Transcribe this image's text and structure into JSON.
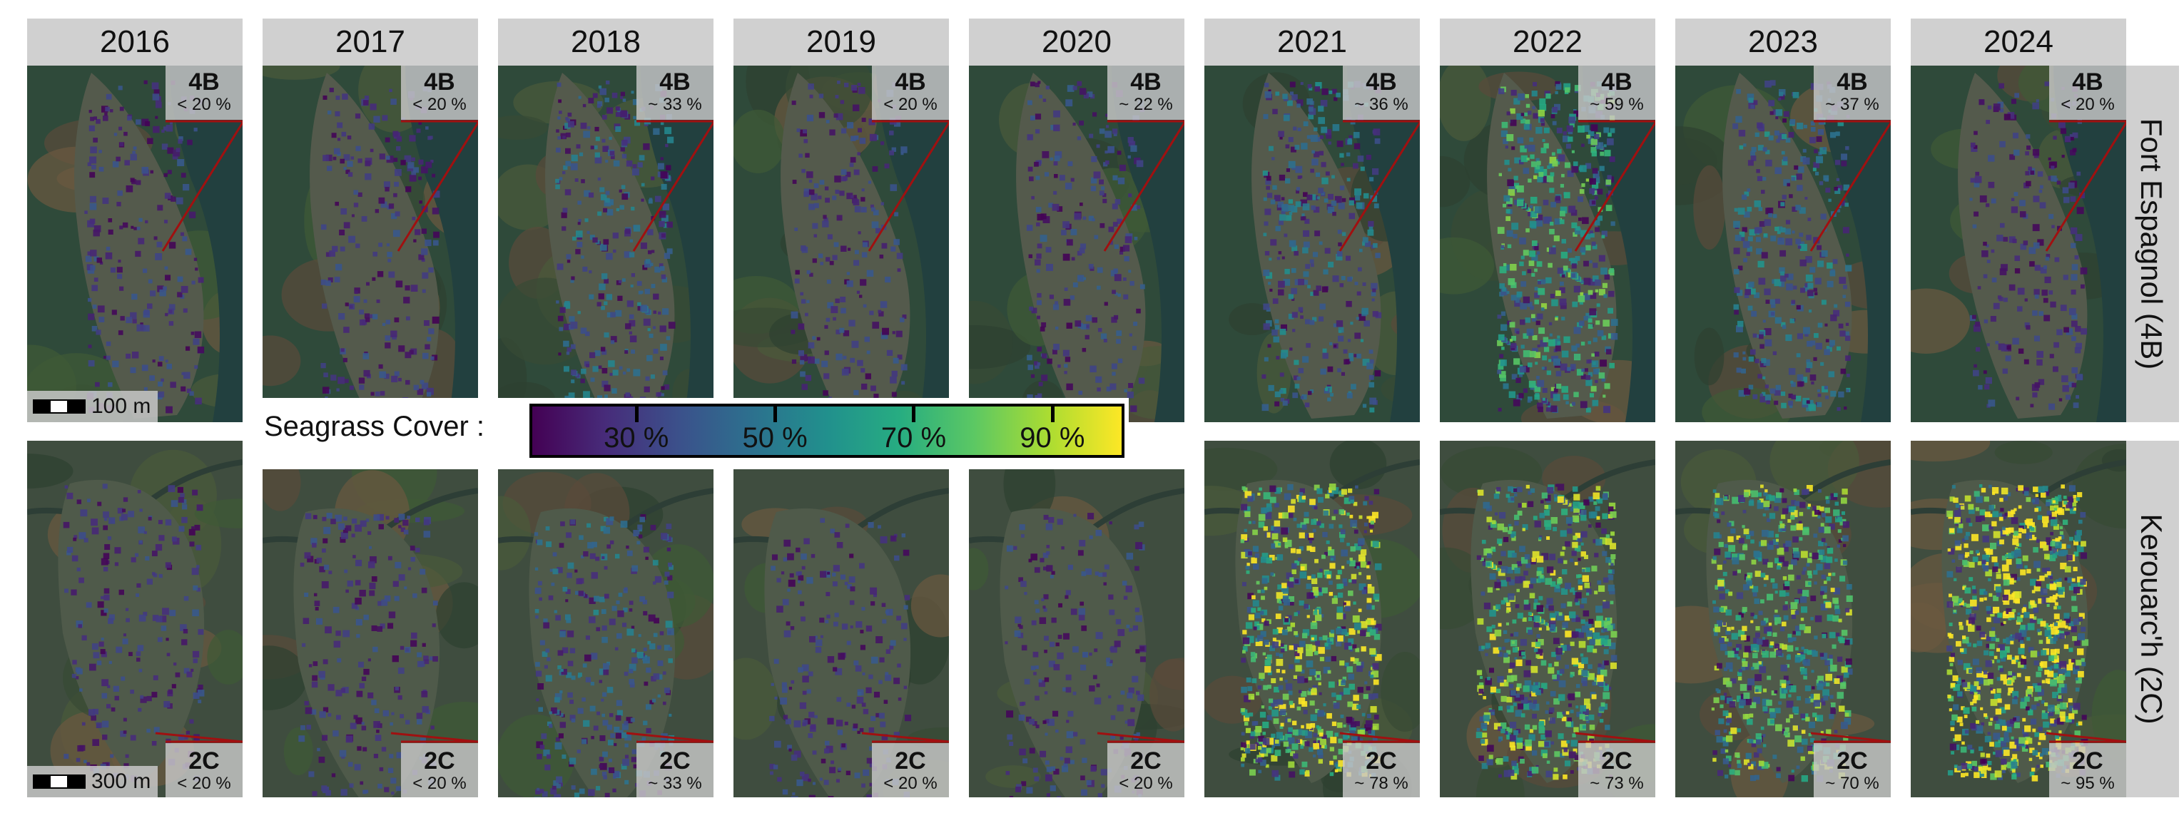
{
  "years": [
    "2016",
    "2017",
    "2018",
    "2019",
    "2020",
    "2021",
    "2022",
    "2023",
    "2024"
  ],
  "sites": [
    {
      "name": "Fort Espagnol (4B)",
      "code": "4B",
      "covers": [
        "< 20 %",
        "< 20 %",
        "~ 33 %",
        "< 20 %",
        "~ 22 %",
        "~ 36 %",
        "~ 59 %",
        "~ 37 %",
        "< 20 %"
      ],
      "scale_label": "100 m"
    },
    {
      "name": "Kerouarc'h (2C)",
      "code": "2C",
      "covers": [
        "< 20 %",
        "< 20 %",
        "~ 33 %",
        "< 20 %",
        "< 20 %",
        "~ 78 %",
        "~ 73 %",
        "~ 70 %",
        "~ 95 %"
      ],
      "scale_label": "300 m"
    }
  ],
  "legend": {
    "label": "Seagrass Cover :",
    "ticks": [
      "30 %",
      "50 %",
      "70 %",
      "90 %"
    ],
    "tick_values": [
      30,
      50,
      70,
      90
    ],
    "range": [
      15,
      100
    ]
  },
  "colors": {
    "header_bg": "#d0d0d0",
    "marker": "#a01010",
    "low": "#440154",
    "high": "#fde725"
  }
}
